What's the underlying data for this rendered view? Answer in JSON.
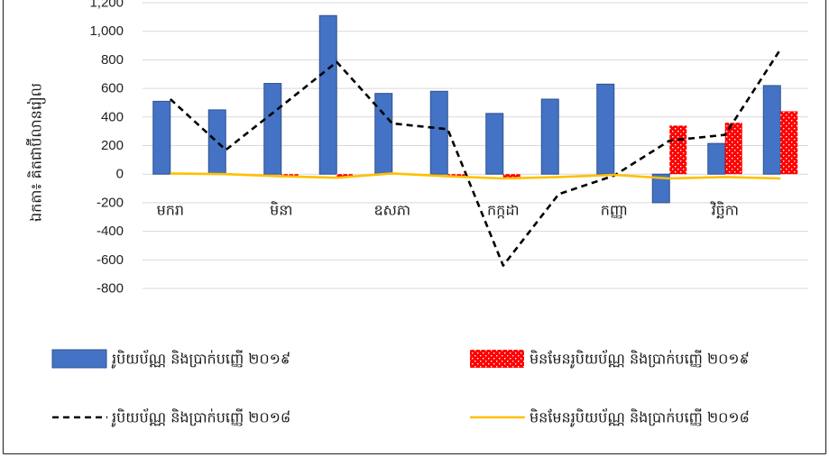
{
  "chart_data": {
    "type": "bar",
    "categories": [
      "មករា",
      "",
      "មិនា",
      "",
      "ឧសភា",
      "",
      "កក្កដា",
      "",
      "កញ្ញា",
      "",
      "វិច្ឆិកា",
      ""
    ],
    "ylabel": "ឯកតា៖ គិតជាប៊ីលានរៀល",
    "ylim": [
      -800,
      1200
    ],
    "y_ticks": [
      1200,
      1000,
      800,
      600,
      400,
      200,
      0,
      -200,
      -400,
      -600,
      -800
    ],
    "y_tick_labels": [
      "1,200",
      "1,000",
      "800",
      "600",
      "400",
      "200",
      "0",
      "-200",
      "-400",
      "-600",
      "-800"
    ],
    "grid": true,
    "legend": "bottom",
    "series": [
      {
        "name": "រូបិយប័ណ្ណ និងប្រាក់បញ្ញើ ២០១៩",
        "type": "bar",
        "color": "#4472C4",
        "border_color": "#2F528F",
        "values": [
          510,
          450,
          635,
          1110,
          565,
          580,
          425,
          525,
          630,
          -200,
          215,
          620
        ]
      },
      {
        "name": "មិនមែនរូបិយប័ណ្ណ និងប្រាក់បញ្ញើ ២០១៩",
        "type": "bar",
        "color": "#FF0000",
        "fill_pattern": "dotted",
        "values": [
          0,
          0,
          -15,
          -20,
          0,
          -15,
          -35,
          0,
          0,
          340,
          360,
          440
        ]
      },
      {
        "name": "រូបិយប័ណ្ណ និងប្រាក់បញ្ញើ ២០១៨",
        "type": "line",
        "color": "#000000",
        "line_style": "dashed",
        "values": [
          525,
          170,
          475,
          785,
          355,
          315,
          -640,
          -140,
          -10,
          235,
          275,
          875
        ]
      },
      {
        "name": "មិនមែនរូបិយប័ណ្ណ និងប្រាក់បញ្ញើ ២០១៨",
        "type": "line",
        "color": "#FFC000",
        "line_style": "solid",
        "values": [
          5,
          0,
          -15,
          -25,
          5,
          -15,
          -30,
          -20,
          -5,
          -30,
          -20,
          -30
        ]
      }
    ]
  }
}
